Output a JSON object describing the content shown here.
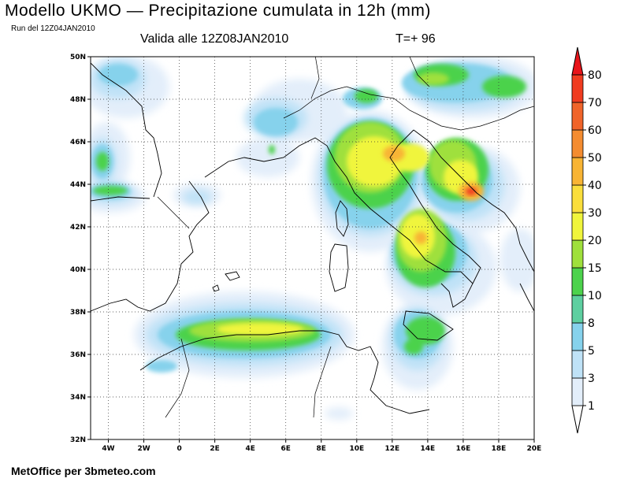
{
  "header": {
    "title": "Modello UKMO — Precipitazione cumulata in 12h (mm)",
    "run": "Run del 12Z04JAN2010",
    "valid": "Valida alle 12Z08JAN2010",
    "forecast_step": "T=+ 96"
  },
  "footer": {
    "credit": "MetOffice per 3bmeteo.com"
  },
  "map": {
    "lon_range": [
      -5,
      20
    ],
    "lat_range": [
      32,
      50
    ],
    "lat_ticks": [
      "32N",
      "34N",
      "36N",
      "38N",
      "40N",
      "42N",
      "44N",
      "46N",
      "48N",
      "50N"
    ],
    "lon_ticks": [
      "4W",
      "2W",
      "0",
      "2E",
      "4E",
      "6E",
      "8E",
      "10E",
      "12E",
      "14E",
      "16E",
      "18E",
      "20E"
    ],
    "grid": true
  },
  "legend": {
    "levels": [
      {
        "label": "1",
        "color": "#e3eefa"
      },
      {
        "label": "3",
        "color": "#bfe2f7"
      },
      {
        "label": "5",
        "color": "#86d2ec"
      },
      {
        "label": "8",
        "color": "#5ecfa0"
      },
      {
        "label": "10",
        "color": "#4cd24c"
      },
      {
        "label": "15",
        "color": "#9fe03c"
      },
      {
        "label": "20",
        "color": "#f0f53c"
      },
      {
        "label": "30",
        "color": "#fade3c"
      },
      {
        "label": "40",
        "color": "#f8b434"
      },
      {
        "label": "50",
        "color": "#f48c30"
      },
      {
        "label": "60",
        "color": "#f0642a"
      },
      {
        "label": "70",
        "color": "#f03c20"
      },
      {
        "label": "80",
        "color": "#e8141a"
      }
    ]
  }
}
